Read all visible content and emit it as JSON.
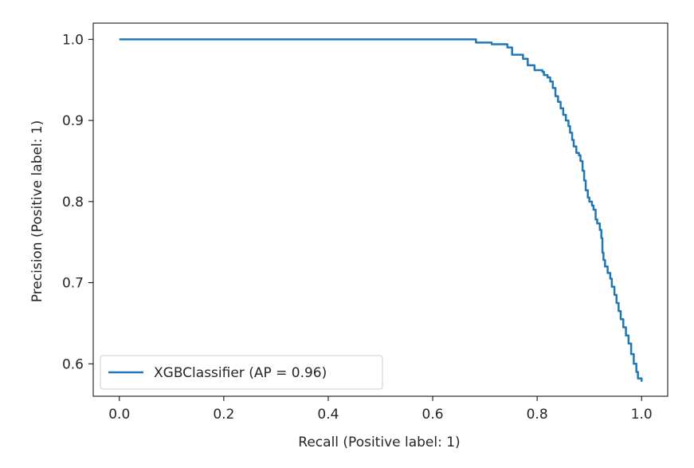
{
  "chart_data": {
    "type": "line",
    "xlabel": "Recall (Positive label: 1)",
    "ylabel": "Precision (Positive label: 1)",
    "xlim": [
      -0.05,
      1.05
    ],
    "ylim": [
      0.56,
      1.02
    ],
    "x_ticks": [
      0.0,
      0.2,
      0.4,
      0.6,
      0.8,
      1.0
    ],
    "y_ticks": [
      0.6,
      0.7,
      0.8,
      0.9,
      1.0
    ],
    "x_tick_labels": [
      "0.0",
      "0.2",
      "0.4",
      "0.6",
      "0.8",
      "1.0"
    ],
    "y_tick_labels": [
      "0.6",
      "0.7",
      "0.8",
      "0.9",
      "1.0"
    ],
    "grid": false,
    "legend_position": "lower-left",
    "series": [
      {
        "name": "XGBClassifier (AP = 0.96)",
        "color": "#1f77b4",
        "step": true,
        "points": [
          [
            0.0,
            1.0
          ],
          [
            0.68,
            1.0
          ],
          [
            0.683,
            0.996
          ],
          [
            0.71,
            0.996
          ],
          [
            0.713,
            0.994
          ],
          [
            0.74,
            0.994
          ],
          [
            0.743,
            0.99
          ],
          [
            0.75,
            0.99
          ],
          [
            0.752,
            0.981
          ],
          [
            0.77,
            0.981
          ],
          [
            0.773,
            0.976
          ],
          [
            0.78,
            0.976
          ],
          [
            0.782,
            0.968
          ],
          [
            0.79,
            0.968
          ],
          [
            0.795,
            0.962
          ],
          [
            0.81,
            0.96
          ],
          [
            0.813,
            0.956
          ],
          [
            0.82,
            0.953
          ],
          [
            0.825,
            0.948
          ],
          [
            0.83,
            0.94
          ],
          [
            0.835,
            0.93
          ],
          [
            0.84,
            0.923
          ],
          [
            0.845,
            0.915
          ],
          [
            0.85,
            0.907
          ],
          [
            0.855,
            0.9
          ],
          [
            0.86,
            0.893
          ],
          [
            0.863,
            0.885
          ],
          [
            0.867,
            0.876
          ],
          [
            0.87,
            0.868
          ],
          [
            0.875,
            0.86
          ],
          [
            0.88,
            0.857
          ],
          [
            0.883,
            0.85
          ],
          [
            0.887,
            0.838
          ],
          [
            0.89,
            0.826
          ],
          [
            0.893,
            0.814
          ],
          [
            0.897,
            0.805
          ],
          [
            0.9,
            0.8
          ],
          [
            0.905,
            0.795
          ],
          [
            0.908,
            0.79
          ],
          [
            0.912,
            0.778
          ],
          [
            0.915,
            0.773
          ],
          [
            0.92,
            0.765
          ],
          [
            0.923,
            0.755
          ],
          [
            0.925,
            0.737
          ],
          [
            0.927,
            0.728
          ],
          [
            0.93,
            0.72
          ],
          [
            0.935,
            0.712
          ],
          [
            0.94,
            0.705
          ],
          [
            0.943,
            0.695
          ],
          [
            0.948,
            0.685
          ],
          [
            0.952,
            0.675
          ],
          [
            0.956,
            0.665
          ],
          [
            0.96,
            0.655
          ],
          [
            0.965,
            0.645
          ],
          [
            0.97,
            0.635
          ],
          [
            0.975,
            0.625
          ],
          [
            0.98,
            0.612
          ],
          [
            0.985,
            0.6
          ],
          [
            0.99,
            0.59
          ],
          [
            0.993,
            0.582
          ],
          [
            1.0,
            0.578
          ]
        ]
      }
    ]
  }
}
